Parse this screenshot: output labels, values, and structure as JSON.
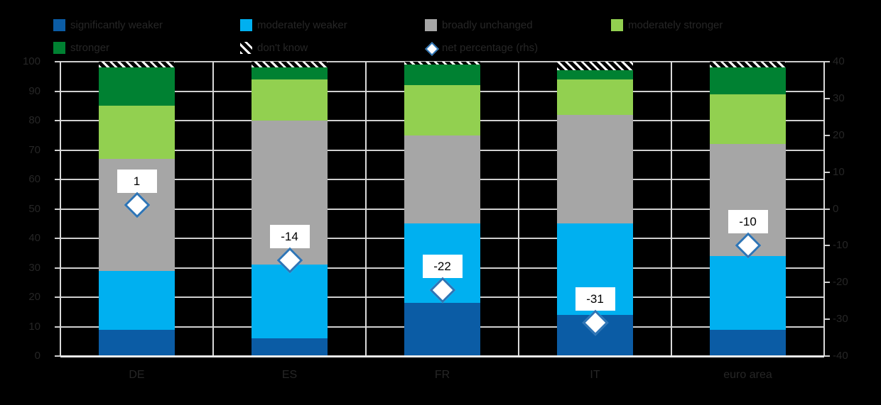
{
  "background_color": "#000000",
  "text_color": "#262626",
  "chart_data": {
    "type": "bar",
    "stacked": true,
    "orientation": "vertical",
    "grid": true,
    "legend_position": "top",
    "categories": [
      "DE",
      "ES",
      "FR",
      "IT",
      "euro area"
    ],
    "series": [
      {
        "name": "significantly weaker",
        "color": "#0b5ca5",
        "values": [
          9,
          6,
          18,
          14,
          9
        ]
      },
      {
        "name": "moderately weaker",
        "color": "#00b0f0",
        "values": [
          20,
          25,
          27,
          31,
          25
        ]
      },
      {
        "name": "broadly unchanged",
        "color": "#a6a6a6",
        "values": [
          38,
          49,
          30,
          37,
          38
        ]
      },
      {
        "name": "moderately stronger",
        "color": "#92d050",
        "values": [
          18,
          14,
          17,
          12,
          17
        ]
      },
      {
        "name": "stronger",
        "color": "#008132",
        "values": [
          13,
          4,
          7,
          3,
          9
        ]
      },
      {
        "name": "don't know",
        "color": "hatch",
        "pattern": "white-diagonal-stripes",
        "values": [
          2,
          2,
          1,
          3,
          2
        ]
      }
    ],
    "net_percentage": {
      "name": "net percentage (rhs)",
      "values": [
        1,
        -14,
        -22,
        -31,
        -10
      ],
      "labels": [
        "1",
        "-14",
        "-22",
        "-31",
        "-10"
      ],
      "marker": {
        "shape": "diamond",
        "fill": "#ffffff",
        "border": "#2e75b6"
      }
    },
    "left_axis": {
      "min": 0,
      "max": 100,
      "step": 10,
      "ticks": [
        "100",
        "90",
        "80",
        "70",
        "60",
        "50",
        "40",
        "30",
        "20",
        "10",
        "0"
      ]
    },
    "right_axis": {
      "min": -40,
      "max": 40,
      "step": 10,
      "ticks": [
        "40",
        "30",
        "20",
        "10",
        "0",
        "-10",
        "-20",
        "-30",
        "-40"
      ]
    }
  }
}
